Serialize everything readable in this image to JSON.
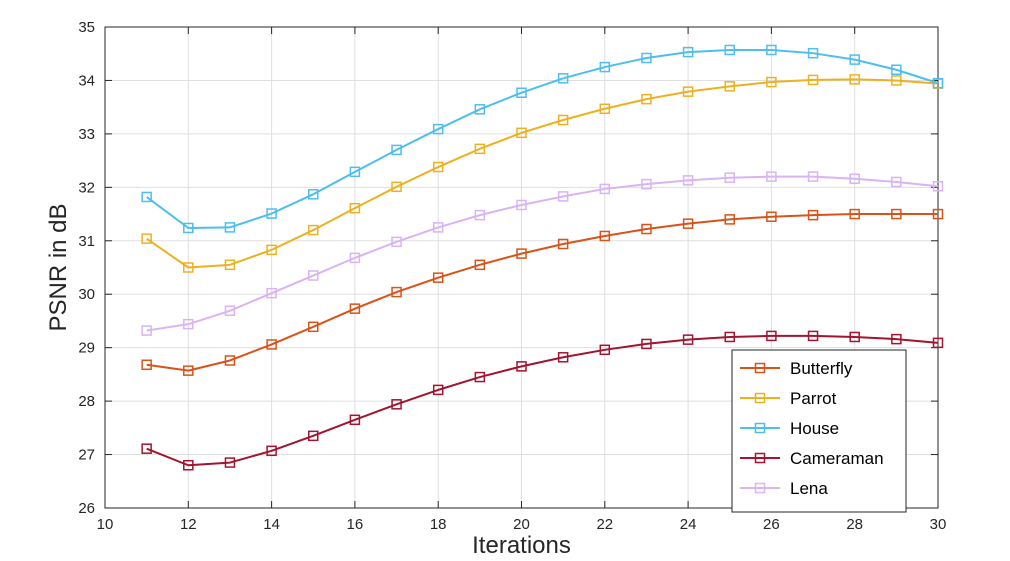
{
  "chart_data": {
    "type": "line",
    "title": "",
    "xlabel": "Iterations",
    "ylabel": "PSNR in dB",
    "xlim": [
      10,
      30
    ],
    "ylim": [
      26,
      35
    ],
    "x_ticks": [
      10,
      12,
      14,
      16,
      18,
      20,
      22,
      24,
      26,
      28,
      30
    ],
    "y_ticks": [
      26,
      27,
      28,
      29,
      30,
      31,
      32,
      33,
      34,
      35
    ],
    "grid": true,
    "legend_position": "bottom-right",
    "marker": "square",
    "x": [
      11,
      12,
      13,
      14,
      15,
      16,
      17,
      18,
      19,
      20,
      21,
      22,
      23,
      24,
      25,
      26,
      27,
      28,
      29,
      30
    ],
    "series": [
      {
        "name": "Butterfly",
        "color": "#D95319",
        "values": [
          28.68,
          28.57,
          28.76,
          29.06,
          29.39,
          29.73,
          30.04,
          30.31,
          30.55,
          30.76,
          30.94,
          31.09,
          31.22,
          31.32,
          31.4,
          31.45,
          31.48,
          31.5,
          31.5,
          31.5
        ]
      },
      {
        "name": "Parrot",
        "color": "#EDB120",
        "values": [
          31.04,
          30.5,
          30.55,
          30.83,
          31.2,
          31.61,
          32.01,
          32.38,
          32.72,
          33.02,
          33.26,
          33.47,
          33.65,
          33.79,
          33.89,
          33.97,
          34.01,
          34.02,
          34.0,
          33.94
        ]
      },
      {
        "name": "House",
        "color": "#4DBEEE",
        "values": [
          31.82,
          31.24,
          31.25,
          31.51,
          31.87,
          32.29,
          32.7,
          33.09,
          33.46,
          33.77,
          34.04,
          34.25,
          34.42,
          34.53,
          34.57,
          34.57,
          34.51,
          34.39,
          34.2,
          33.95
        ]
      },
      {
        "name": "Cameraman",
        "color": "#A2142F",
        "values": [
          27.11,
          26.8,
          26.85,
          27.07,
          27.35,
          27.65,
          27.94,
          28.21,
          28.45,
          28.65,
          28.82,
          28.96,
          29.07,
          29.15,
          29.2,
          29.22,
          29.22,
          29.2,
          29.16,
          29.09
        ]
      },
      {
        "name": "Lena",
        "color": "#D9B3F2",
        "values": [
          29.32,
          29.44,
          29.69,
          30.02,
          30.35,
          30.68,
          30.98,
          31.25,
          31.48,
          31.67,
          31.83,
          31.97,
          32.06,
          32.13,
          32.18,
          32.2,
          32.2,
          32.16,
          32.1,
          32.02
        ]
      }
    ]
  }
}
